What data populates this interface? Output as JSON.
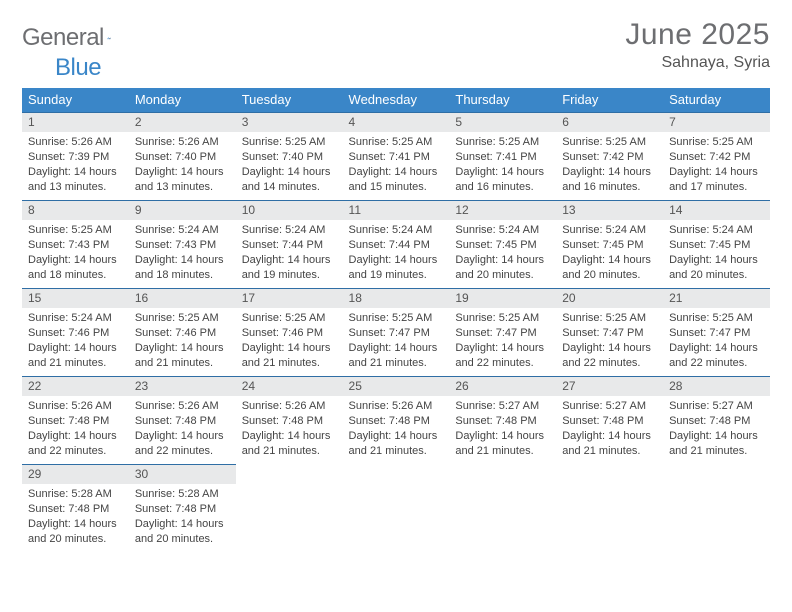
{
  "logo": {
    "text_general": "General",
    "text_blue": "Blue"
  },
  "title": "June 2025",
  "location": "Sahnaya, Syria",
  "styling": {
    "header_bg": "#3a86c8",
    "daynum_bg": "#e8e9ea",
    "daynum_border_top": "#2f6ea5",
    "page_bg": "#ffffff",
    "text_color": "#444444",
    "font_family": "Arial, Helvetica, sans-serif",
    "day_header_fontsize": 13,
    "body_fontsize": 11,
    "title_fontsize": 30
  },
  "day_headers": [
    "Sunday",
    "Monday",
    "Tuesday",
    "Wednesday",
    "Thursday",
    "Friday",
    "Saturday"
  ],
  "weeks": [
    [
      {
        "n": "1",
        "sr": "5:26 AM",
        "ss": "7:39 PM",
        "dl": "14 hours and 13 minutes."
      },
      {
        "n": "2",
        "sr": "5:26 AM",
        "ss": "7:40 PM",
        "dl": "14 hours and 13 minutes."
      },
      {
        "n": "3",
        "sr": "5:25 AM",
        "ss": "7:40 PM",
        "dl": "14 hours and 14 minutes."
      },
      {
        "n": "4",
        "sr": "5:25 AM",
        "ss": "7:41 PM",
        "dl": "14 hours and 15 minutes."
      },
      {
        "n": "5",
        "sr": "5:25 AM",
        "ss": "7:41 PM",
        "dl": "14 hours and 16 minutes."
      },
      {
        "n": "6",
        "sr": "5:25 AM",
        "ss": "7:42 PM",
        "dl": "14 hours and 16 minutes."
      },
      {
        "n": "7",
        "sr": "5:25 AM",
        "ss": "7:42 PM",
        "dl": "14 hours and 17 minutes."
      }
    ],
    [
      {
        "n": "8",
        "sr": "5:25 AM",
        "ss": "7:43 PM",
        "dl": "14 hours and 18 minutes."
      },
      {
        "n": "9",
        "sr": "5:24 AM",
        "ss": "7:43 PM",
        "dl": "14 hours and 18 minutes."
      },
      {
        "n": "10",
        "sr": "5:24 AM",
        "ss": "7:44 PM",
        "dl": "14 hours and 19 minutes."
      },
      {
        "n": "11",
        "sr": "5:24 AM",
        "ss": "7:44 PM",
        "dl": "14 hours and 19 minutes."
      },
      {
        "n": "12",
        "sr": "5:24 AM",
        "ss": "7:45 PM",
        "dl": "14 hours and 20 minutes."
      },
      {
        "n": "13",
        "sr": "5:24 AM",
        "ss": "7:45 PM",
        "dl": "14 hours and 20 minutes."
      },
      {
        "n": "14",
        "sr": "5:24 AM",
        "ss": "7:45 PM",
        "dl": "14 hours and 20 minutes."
      }
    ],
    [
      {
        "n": "15",
        "sr": "5:24 AM",
        "ss": "7:46 PM",
        "dl": "14 hours and 21 minutes."
      },
      {
        "n": "16",
        "sr": "5:25 AM",
        "ss": "7:46 PM",
        "dl": "14 hours and 21 minutes."
      },
      {
        "n": "17",
        "sr": "5:25 AM",
        "ss": "7:46 PM",
        "dl": "14 hours and 21 minutes."
      },
      {
        "n": "18",
        "sr": "5:25 AM",
        "ss": "7:47 PM",
        "dl": "14 hours and 21 minutes."
      },
      {
        "n": "19",
        "sr": "5:25 AM",
        "ss": "7:47 PM",
        "dl": "14 hours and 22 minutes."
      },
      {
        "n": "20",
        "sr": "5:25 AM",
        "ss": "7:47 PM",
        "dl": "14 hours and 22 minutes."
      },
      {
        "n": "21",
        "sr": "5:25 AM",
        "ss": "7:47 PM",
        "dl": "14 hours and 22 minutes."
      }
    ],
    [
      {
        "n": "22",
        "sr": "5:26 AM",
        "ss": "7:48 PM",
        "dl": "14 hours and 22 minutes."
      },
      {
        "n": "23",
        "sr": "5:26 AM",
        "ss": "7:48 PM",
        "dl": "14 hours and 22 minutes."
      },
      {
        "n": "24",
        "sr": "5:26 AM",
        "ss": "7:48 PM",
        "dl": "14 hours and 21 minutes."
      },
      {
        "n": "25",
        "sr": "5:26 AM",
        "ss": "7:48 PM",
        "dl": "14 hours and 21 minutes."
      },
      {
        "n": "26",
        "sr": "5:27 AM",
        "ss": "7:48 PM",
        "dl": "14 hours and 21 minutes."
      },
      {
        "n": "27",
        "sr": "5:27 AM",
        "ss": "7:48 PM",
        "dl": "14 hours and 21 minutes."
      },
      {
        "n": "28",
        "sr": "5:27 AM",
        "ss": "7:48 PM",
        "dl": "14 hours and 21 minutes."
      }
    ],
    [
      {
        "n": "29",
        "sr": "5:28 AM",
        "ss": "7:48 PM",
        "dl": "14 hours and 20 minutes."
      },
      {
        "n": "30",
        "sr": "5:28 AM",
        "ss": "7:48 PM",
        "dl": "14 hours and 20 minutes."
      },
      null,
      null,
      null,
      null,
      null
    ]
  ],
  "labels": {
    "sunrise": "Sunrise: ",
    "sunset": "Sunset: ",
    "daylight": "Daylight: "
  }
}
